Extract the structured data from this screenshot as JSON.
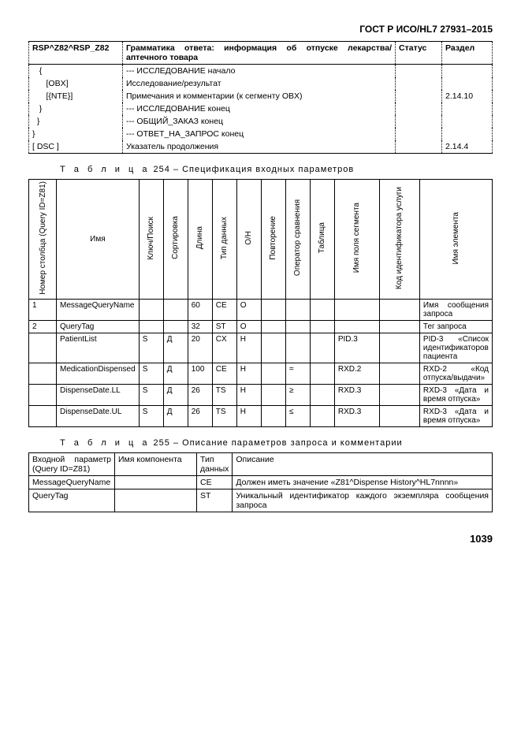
{
  "doc_header": "ГОСТ Р ИСО/HL7 27931–2015",
  "t1": {
    "h1": "RSP^Z82^RSP_Z82",
    "h2": "Грамматика ответа: информация об отпуске лекарства/аптечного товара",
    "h3": "Статус",
    "h4": "Раздел",
    "rows": [
      {
        "c1": "   {",
        "c2": "--- ИССЛЕДОВАНИЕ начало",
        "c3": "",
        "c4": ""
      },
      {
        "c1": "      [OBX]",
        "c2": "Исследование/результат",
        "c3": "",
        "c4": ""
      },
      {
        "c1": "      [{NTE}]",
        "c2": "Примечания и комментарии (к сегменту OBX)",
        "c3": "",
        "c4": "2.14.10"
      },
      {
        "c1": "   }",
        "c2": "--- ИССЛЕДОВАНИЕ конец",
        "c3": "",
        "c4": ""
      },
      {
        "c1": "  }",
        "c2": "--- ОБЩИЙ_ЗАКАЗ конец",
        "c3": "",
        "c4": ""
      },
      {
        "c1": "}",
        "c2": "--- ОТВЕТ_НА_ЗАПРОС конец",
        "c3": "",
        "c4": ""
      },
      {
        "c1": "[ DSC ]",
        "c2": "Указатель продолжения",
        "c3": "",
        "c4": "2.14.4"
      }
    ]
  },
  "cap254_a": "Т а б л и ц а",
  "cap254_b": " 254 – Спецификация входных параметров",
  "t2": {
    "headers": [
      "Номер столбца (Query ID=Z81)",
      "Имя",
      "Ключ/Поиск",
      "Сортировка",
      "Длина",
      "Тип данных",
      "О/Н",
      "Повторение",
      "Оператор сравнения",
      "Таблица",
      "Имя поля сегмента",
      "Код идентификатора услуги",
      "Имя элемента"
    ],
    "rows": [
      {
        "num": "1",
        "name": "MessageQueryName",
        "kp": "",
        "sort": "",
        "len": "60",
        "dt": "CE",
        "on": "O",
        "rep": "",
        "op": "",
        "tab": "",
        "seg": "",
        "kod": "",
        "elem": "Имя сообщения запроса"
      },
      {
        "num": "2",
        "name": "QueryTag",
        "kp": "",
        "sort": "",
        "len": "32",
        "dt": "ST",
        "on": "O",
        "rep": "",
        "op": "",
        "tab": "",
        "seg": "",
        "kod": "",
        "elem": "Тег запроса"
      },
      {
        "num": "",
        "name": "PatientList",
        "kp": "S",
        "sort": "Д",
        "len": "20",
        "dt": "CX",
        "on": "Н",
        "rep": "",
        "op": "",
        "tab": "",
        "seg": "PID.3",
        "kod": "",
        "elem": "PID-3 «Список идентификаторов пациента"
      },
      {
        "num": "",
        "name": "MedicationDispensed",
        "kp": "S",
        "sort": "Д",
        "len": "100",
        "dt": "CE",
        "on": "Н",
        "rep": "",
        "op": "=",
        "tab": "",
        "seg": "RXD.2",
        "kod": "",
        "elem": "RXD-2 «Код отпуска/выдачи»"
      },
      {
        "num": "",
        "name": "DispenseDate.LL",
        "kp": "S",
        "sort": "Д",
        "len": "26",
        "dt": "TS",
        "on": "Н",
        "rep": "",
        "op": "≥",
        "tab": "",
        "seg": "RXD.3",
        "kod": "",
        "elem": "RXD-3 «Дата и время отпуска»"
      },
      {
        "num": "",
        "name": "DispenseDate.UL",
        "kp": "S",
        "sort": "Д",
        "len": "26",
        "dt": "TS",
        "on": "Н",
        "rep": "",
        "op": "≤",
        "tab": "",
        "seg": "RXD.3",
        "kod": "",
        "elem": "RXD-3 «Дата и время отпуска»"
      }
    ]
  },
  "cap255_a": "Т а б л и ц а",
  "cap255_b": " 255 – Описание параметров запроса и комментарии",
  "t3": {
    "h1": "Входной параметр (Query ID=Z81)",
    "h2": "Имя компонента",
    "h3": "Тип данных",
    "h4": "Описание",
    "rows": [
      {
        "c1": "MessageQueryName",
        "c2": "",
        "c3": "CE",
        "c4": "Должен иметь значение «Z81^Dispense History^HL7nnnn»"
      },
      {
        "c1": "QueryTag",
        "c2": "",
        "c3": "ST",
        "c4": "Уникальный идентификатор каждого экземпляра сообщения запроса"
      }
    ]
  },
  "page_num": "1039"
}
